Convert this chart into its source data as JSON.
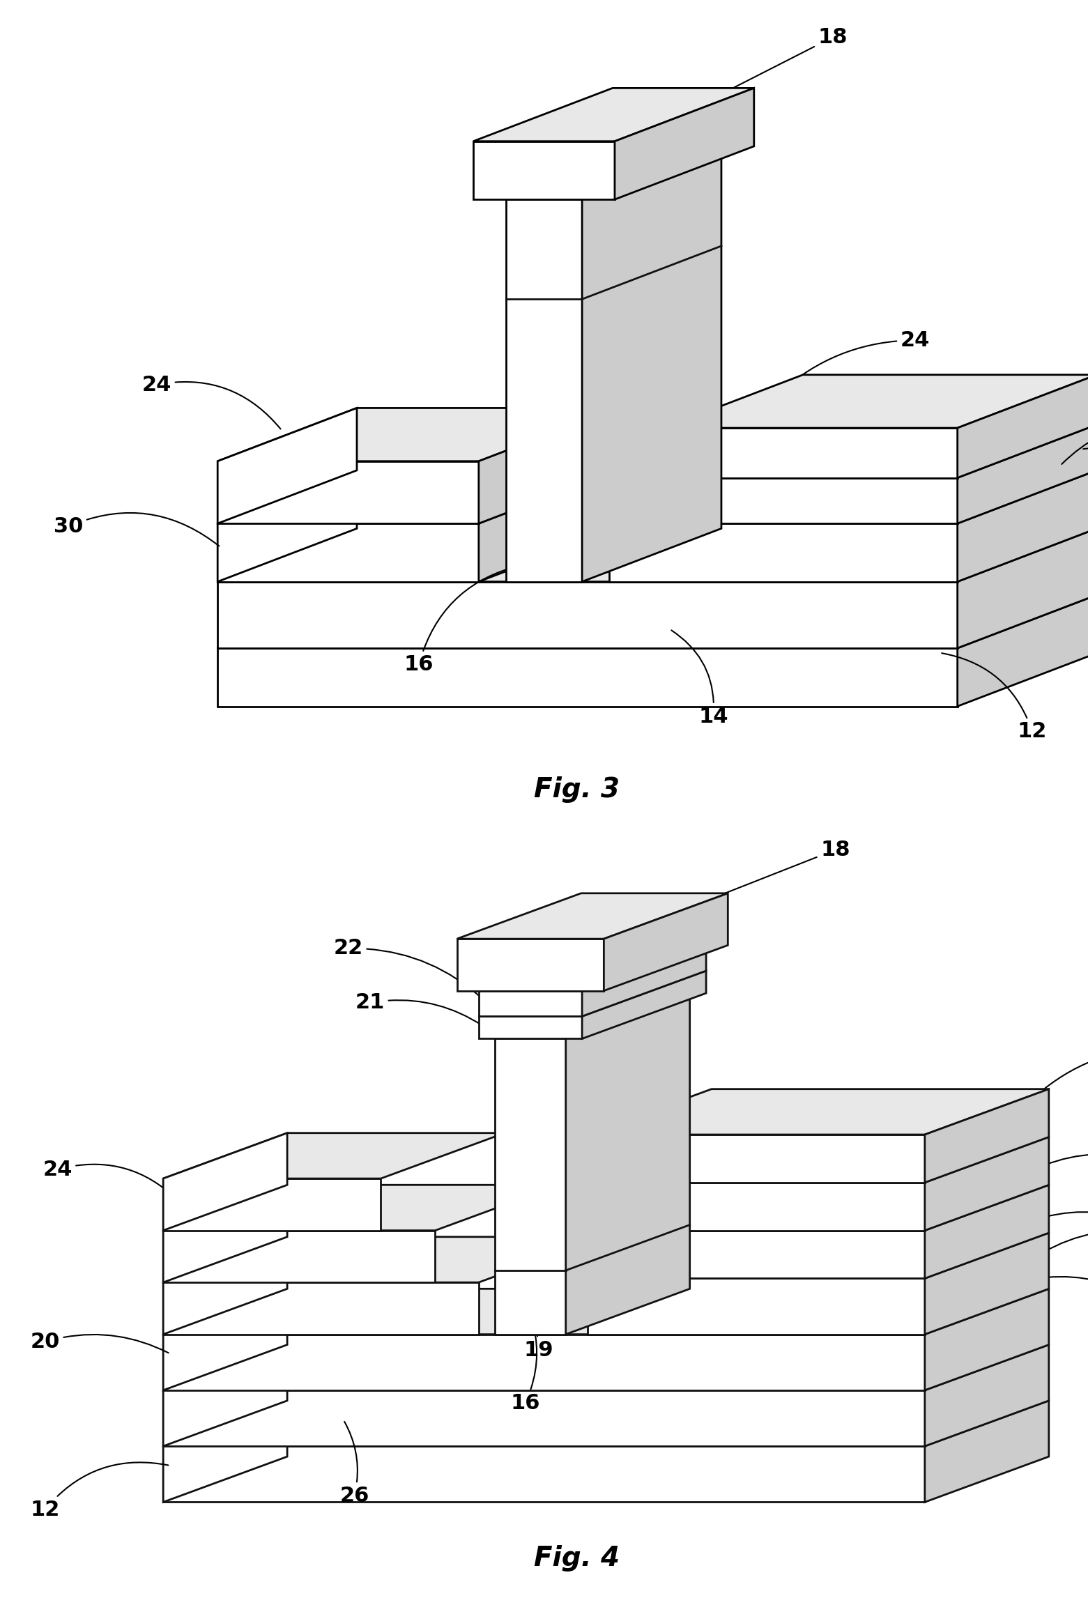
{
  "fig_width": 15.61,
  "fig_height": 22.93,
  "bg_color": "#ffffff",
  "edge_color": "#111111",
  "front_color": "#ffffff",
  "top_color": "#e8e8e8",
  "right_color": "#cccccc",
  "lw": 2.0,
  "fig3_label": "Fig. 3",
  "fig4_label": "Fig. 4",
  "label_fontsize": 22,
  "title_fontsize": 28,
  "OX": 0.4,
  "OY": 0.2,
  "D": 3.2
}
